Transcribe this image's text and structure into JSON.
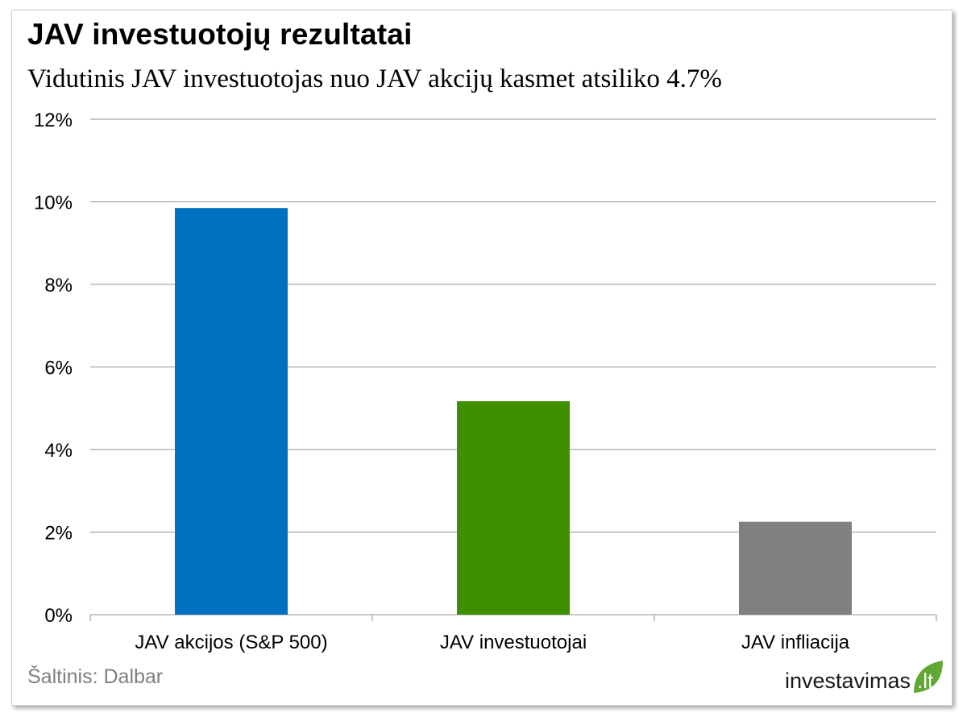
{
  "header": {
    "title": "JAV investuotojų rezultatai",
    "subtitle": "Vidutinis JAV investuotojas nuo JAV akcijų kasmet atsiliko 4.7%"
  },
  "footer": {
    "source": "Šaltinis: Dalbar",
    "logo_text": "investavimas",
    "logo_suffix": ".lt"
  },
  "chart_data": {
    "type": "bar",
    "categories": [
      "JAV akcijos (S&P 500)",
      "JAV investuotojai",
      "JAV infliacija"
    ],
    "values": [
      9.85,
      5.17,
      2.25
    ],
    "colors": [
      "#0070c0",
      "#3f9000",
      "#808080"
    ],
    "ylim": [
      0,
      12
    ],
    "yticks": [
      0,
      2,
      4,
      6,
      8,
      10,
      12
    ],
    "ytick_labels": [
      "0%",
      "2%",
      "4%",
      "6%",
      "8%",
      "10%",
      "12%"
    ],
    "grid": true,
    "legend": "none"
  },
  "colors": {
    "grid": "#a6a6a6",
    "axis": "#a6a6a6",
    "leaf": "#5fa831"
  }
}
